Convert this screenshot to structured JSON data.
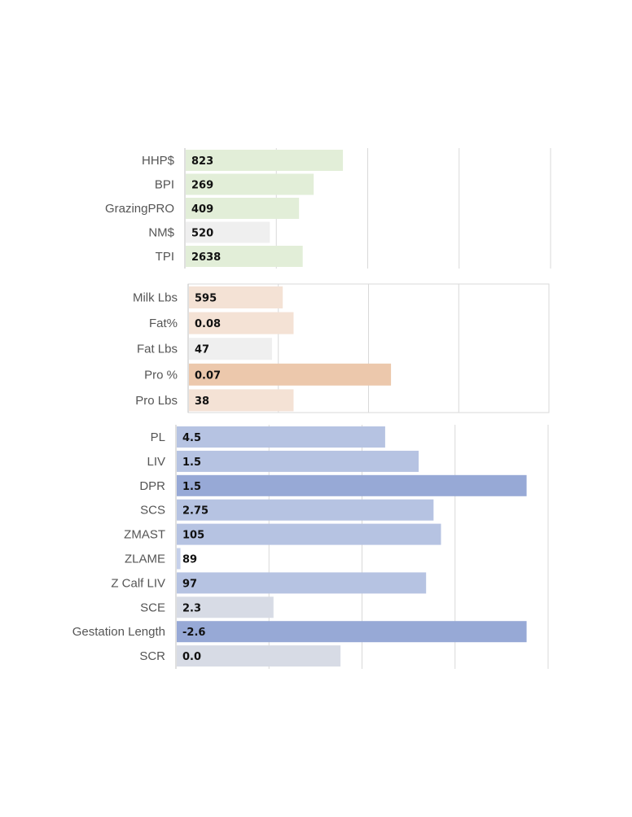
{
  "chart_data": [
    {
      "type": "bar",
      "orientation": "horizontal",
      "categories": [
        "HHP$",
        "BPI",
        "GrazingPRO",
        "NM$",
        "TPI"
      ],
      "values": [
        823,
        269,
        409,
        520,
        2638
      ],
      "bar_fraction": [
        0.43,
        0.35,
        0.31,
        0.23,
        0.32
      ],
      "bar_colors": [
        "#e2eed8",
        "#e2eed8",
        "#e2eed8",
        "#efefef",
        "#e2eed8"
      ],
      "grid": true,
      "legend": "none"
    },
    {
      "type": "bar",
      "orientation": "horizontal",
      "categories": [
        "Milk Lbs",
        "Fat%",
        "Fat Lbs",
        "Pro %",
        "Pro Lbs"
      ],
      "values": [
        595,
        0.08,
        47,
        0.07,
        38
      ],
      "bar_fraction": [
        0.26,
        0.29,
        0.23,
        0.56,
        0.29
      ],
      "bar_colors": [
        "#f4e2d5",
        "#f4e2d5",
        "#efefef",
        "#ecc8ac",
        "#f4e2d5"
      ],
      "grid": true,
      "legend": "none"
    },
    {
      "type": "bar",
      "orientation": "horizontal",
      "categories": [
        "PL",
        "LIV",
        "DPR",
        "SCS",
        "ZMAST",
        "ZLAME",
        "Z Calf LIV",
        "SCE",
        "Gestation Length",
        "SCR"
      ],
      "values": [
        4.5,
        1.5,
        1.5,
        2.75,
        105,
        89,
        97,
        2.3,
        -2.6,
        0.0
      ],
      "bar_fraction": [
        0.56,
        0.65,
        0.94,
        0.69,
        0.71,
        0.01,
        0.67,
        0.26,
        0.94,
        0.44
      ],
      "bar_colors": [
        "#b6c3e2",
        "#b6c3e2",
        "#97a9d6",
        "#b6c3e2",
        "#b6c3e2",
        "#c5d0ea",
        "#b6c3e2",
        "#d7dbe5",
        "#97a9d6",
        "#d7dbe5"
      ],
      "grid": true,
      "legend": "none"
    }
  ]
}
